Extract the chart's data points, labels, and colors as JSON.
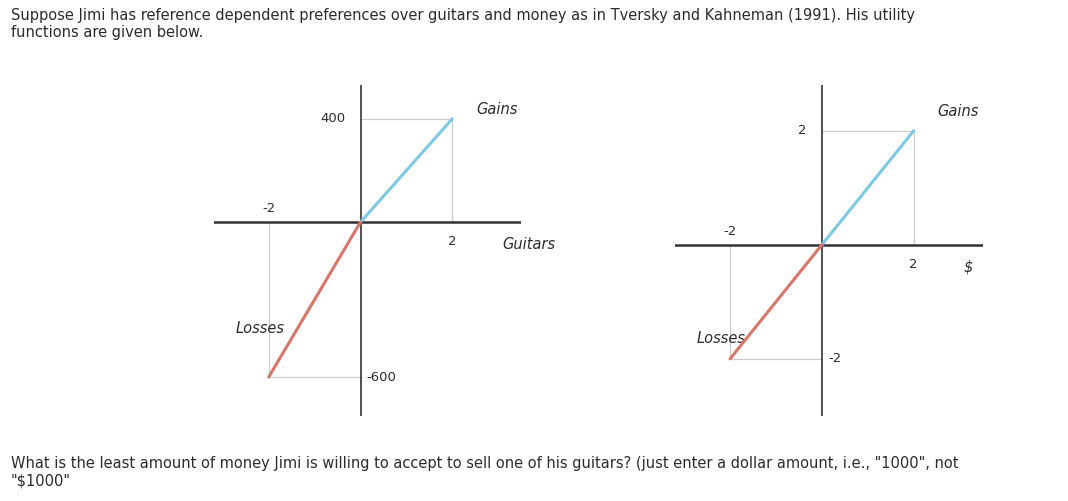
{
  "bg_color": "#ffffff",
  "text_color": "#2c2c2c",
  "title_text": "Suppose Jimi has reference dependent preferences over guitars and money as in Tversky and Kahneman (1991). His utility\nfunctions are given below.",
  "footer_text": "What is the least amount of money Jimi is willing to accept to sell one of his guitars? (just enter a dollar amount, i.e., \"1000\", not\n\"$1000\"",
  "chart1": {
    "x_label": "Guitars",
    "gains_label": "Gains",
    "losses_label": "Losses",
    "x_pos_tick": 2,
    "x_neg_tick": -2,
    "y_pos_tick": 400,
    "y_neg_tick": -600,
    "gains_line": {
      "x": [
        0,
        2
      ],
      "y": [
        0,
        400
      ]
    },
    "losses_line": {
      "x": [
        -2,
        0
      ],
      "y": [
        -600,
        0
      ]
    },
    "gains_color": "#7ec8e3",
    "losses_color": "#d9766a",
    "axis_color": "#333333",
    "ref_line_color": "#cccccc",
    "xlim": [
      -3.2,
      3.5
    ],
    "ylim": [
      -750,
      530
    ]
  },
  "chart2": {
    "x_label": "$",
    "gains_label": "Gains",
    "losses_label": "Losses",
    "x_pos_tick": 2,
    "x_neg_tick": -2,
    "y_pos_tick": 2,
    "y_neg_tick": -2,
    "gains_line": {
      "x": [
        0,
        2
      ],
      "y": [
        0,
        2
      ]
    },
    "losses_line": {
      "x": [
        -2,
        0
      ],
      "y": [
        -2,
        0
      ]
    },
    "gains_color": "#7ec8e3",
    "losses_color": "#d9766a",
    "axis_color": "#333333",
    "ref_line_color": "#cccccc",
    "xlim": [
      -3.2,
      3.5
    ],
    "ylim": [
      -3.0,
      2.8
    ]
  }
}
